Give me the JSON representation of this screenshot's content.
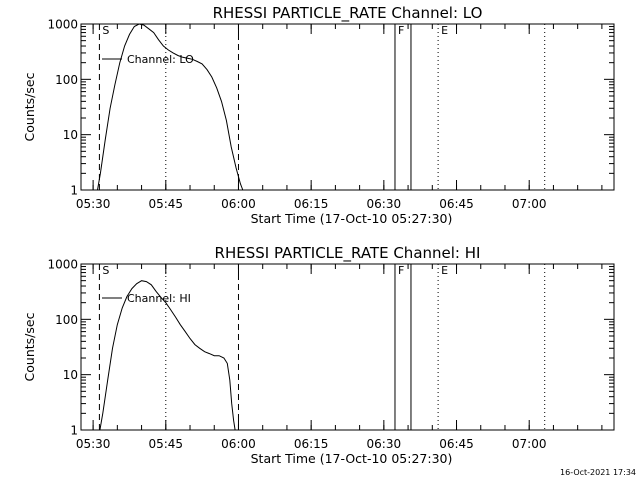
{
  "chart_data": [
    {
      "type": "line",
      "title": "RHESSI PARTICLE_RATE Channel: LO",
      "xlabel": "Start Time (17-Oct-10 05:27:30)",
      "ylabel": "Counts/sec",
      "yscale": "log",
      "ylim": [
        1,
        1000
      ],
      "xlim_min": [
        327.5,
        437.5
      ],
      "x_tick_labels": [
        "05:30",
        "05:45",
        "06:00",
        "06:15",
        "06:30",
        "06:45",
        "07:00"
      ],
      "x_tick_min": [
        330,
        345,
        360,
        375,
        390,
        405,
        420
      ],
      "y_tick_labels": [
        "1",
        "10",
        "100",
        "1000"
      ],
      "y_tick_values": [
        1,
        10,
        100,
        1000
      ],
      "legend": "Channel: LO",
      "markers": [
        {
          "label": "S",
          "x_min": 331.3,
          "style": "dashed"
        },
        {
          "label": "",
          "x_min": 345,
          "style": "dotted"
        },
        {
          "label": "",
          "x_min": 360,
          "style": "dashed"
        },
        {
          "label": "F",
          "x_min": 392.3,
          "style": "solid"
        },
        {
          "label": "",
          "x_min": 395.6,
          "style": "solid"
        },
        {
          "label": "E",
          "x_min": 401.2,
          "style": "dotted"
        },
        {
          "label": "",
          "x_min": 423.2,
          "style": "dotted"
        }
      ],
      "series": [
        {
          "x_min": [
            330.9,
            331.5,
            332.5,
            333.5,
            334.5,
            335.5,
            336.5,
            337.5,
            338.5,
            339.5,
            340.5,
            341.5,
            342.5,
            343.5,
            344.5,
            345.5,
            346.5,
            347.5,
            348.5,
            349.5,
            350.5,
            351.5,
            352.5,
            353.5,
            354.5,
            355.5,
            356.5,
            357.5,
            358.5,
            359.5,
            360.4,
            360.9
          ],
          "values": [
            1,
            2,
            8,
            30,
            80,
            200,
            400,
            650,
            900,
            1000,
            950,
            820,
            700,
            520,
            400,
            340,
            300,
            270,
            250,
            240,
            230,
            210,
            190,
            150,
            110,
            70,
            40,
            18,
            6,
            2.5,
            1.3,
            1
          ]
        }
      ]
    },
    {
      "type": "line",
      "title": "RHESSI PARTICLE_RATE Channel: HI",
      "xlabel": "Start Time (17-Oct-10 05:27:30)",
      "ylabel": "Counts/sec",
      "yscale": "log",
      "ylim": [
        1,
        1000
      ],
      "xlim_min": [
        327.5,
        437.5
      ],
      "x_tick_labels": [
        "05:30",
        "05:45",
        "06:00",
        "06:15",
        "06:30",
        "06:45",
        "07:00"
      ],
      "x_tick_min": [
        330,
        345,
        360,
        375,
        390,
        405,
        420
      ],
      "y_tick_labels": [
        "1",
        "10",
        "100",
        "1000"
      ],
      "y_tick_values": [
        1,
        10,
        100,
        1000
      ],
      "legend": "Channel: HI",
      "markers": [
        {
          "label": "S",
          "x_min": 331.3,
          "style": "dashed"
        },
        {
          "label": "",
          "x_min": 345,
          "style": "dotted"
        },
        {
          "label": "",
          "x_min": 360,
          "style": "dashed"
        },
        {
          "label": "F",
          "x_min": 392.3,
          "style": "solid"
        },
        {
          "label": "",
          "x_min": 395.6,
          "style": "solid"
        },
        {
          "label": "E",
          "x_min": 401.2,
          "style": "dotted"
        },
        {
          "label": "",
          "x_min": 423.2,
          "style": "dotted"
        }
      ],
      "series": [
        {
          "x_min": [
            331.4,
            332.0,
            333.0,
            334.0,
            335.0,
            336.0,
            337.0,
            338.0,
            339.0,
            340.0,
            341.0,
            342.0,
            343.0,
            344.0,
            345.0,
            346.0,
            347.0,
            348.0,
            349.0,
            350.0,
            351.0,
            352.0,
            353.0,
            354.0,
            355.0,
            356.0,
            357.0,
            357.7,
            358.2,
            358.6,
            359.0,
            359.3
          ],
          "values": [
            1,
            2,
            8,
            30,
            80,
            160,
            260,
            360,
            440,
            500,
            480,
            420,
            320,
            250,
            200,
            150,
            110,
            80,
            60,
            45,
            35,
            30,
            26,
            24,
            22,
            22,
            20,
            16,
            8,
            3,
            1.5,
            1
          ]
        }
      ]
    }
  ],
  "footer": {
    "timestamp": "16-Oct-2021 17:34"
  }
}
